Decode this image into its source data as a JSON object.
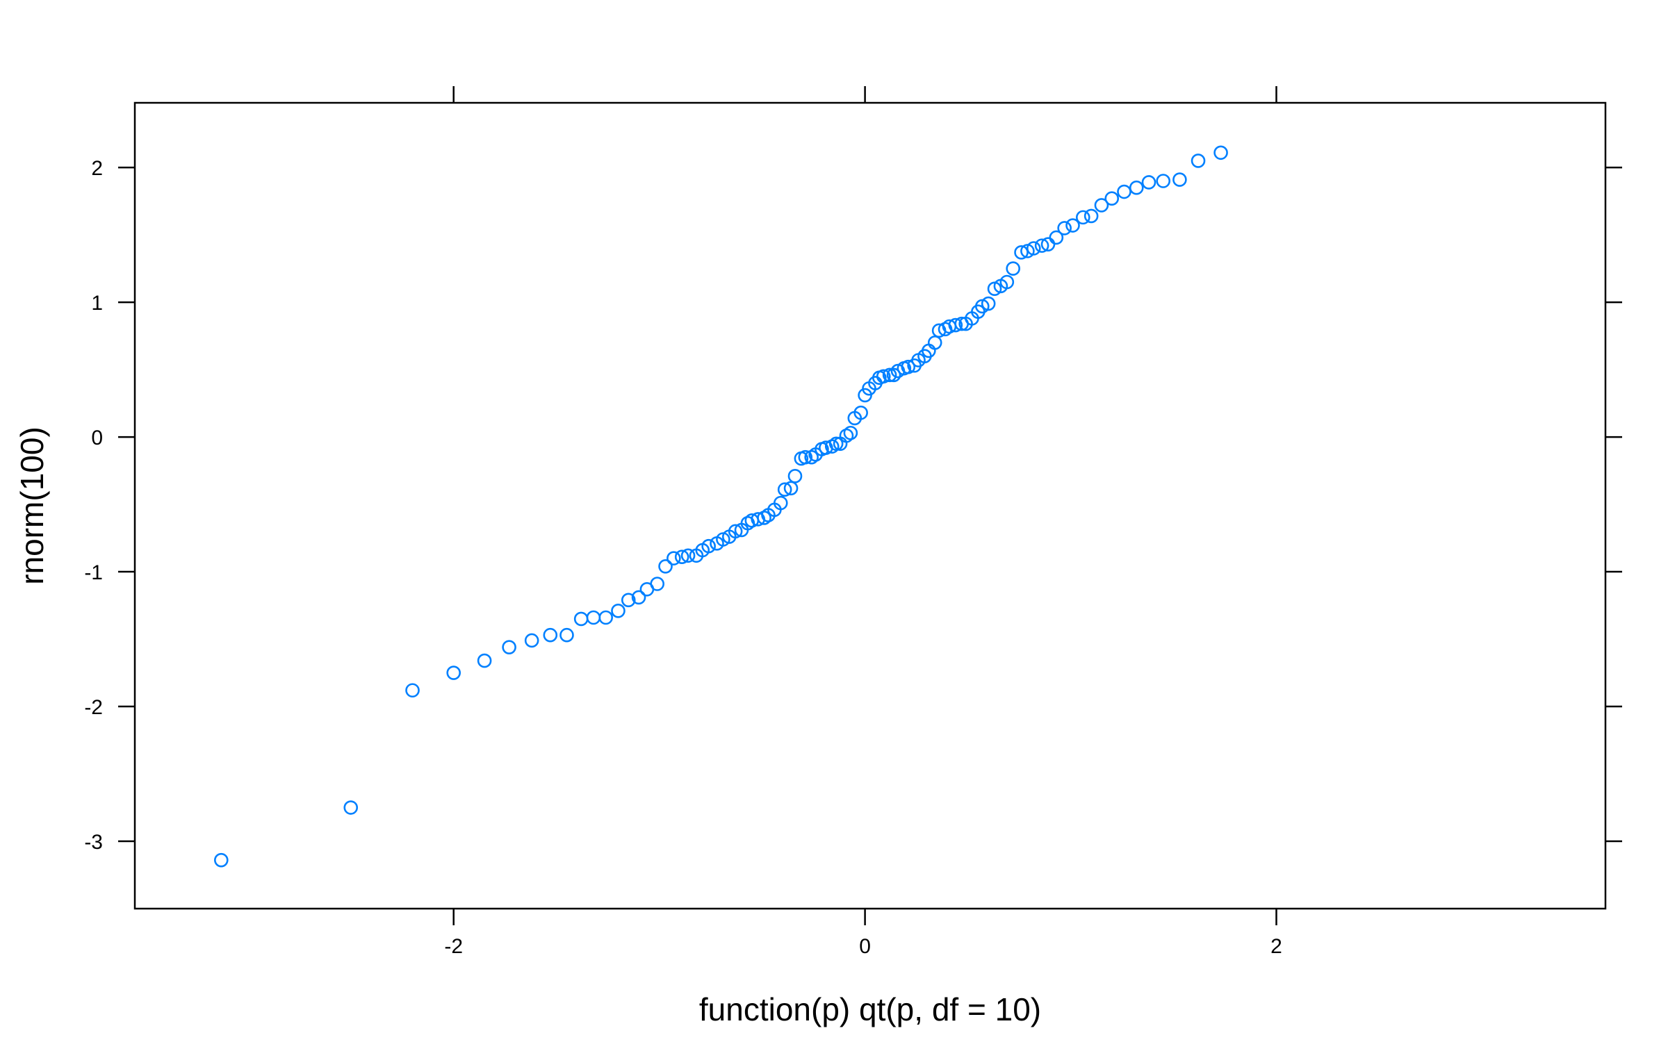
{
  "chart_data": {
    "type": "scatter",
    "title": "",
    "xlabel": "function(p) qt(p, df = 10)",
    "ylabel": "rnorm(100)",
    "xlim": [
      -3.55,
      3.6
    ],
    "ylim": [
      -3.5,
      2.48
    ],
    "xticks": [
      -2,
      0,
      2
    ],
    "xtick_labels": [
      "-2",
      "0",
      "2"
    ],
    "yticks": [
      -3,
      -2,
      -1,
      0,
      1,
      2
    ],
    "ytick_labels": [
      "-3",
      "-2",
      "-1",
      "0",
      "1",
      "2"
    ],
    "grid": false,
    "legend": "none",
    "marker": "open-circle",
    "series_color": "#0080ff",
    "axis_color": "#000000",
    "x": [
      -3.13,
      -2.5,
      -2.2,
      -2.0,
      -1.85,
      -1.73,
      -1.62,
      -1.53,
      -1.45,
      -1.38,
      -1.32,
      -1.26,
      -1.2,
      -1.15,
      -1.1,
      -1.06,
      -1.01,
      -0.97,
      -0.93,
      -0.89,
      -0.86,
      -0.82,
      -0.79,
      -0.76,
      -0.72,
      -0.69,
      -0.66,
      -0.63,
      -0.6,
      -0.57,
      -0.55,
      -0.52,
      -0.49,
      -0.47,
      -0.44,
      -0.41,
      -0.39,
      -0.36,
      -0.34,
      -0.31,
      -0.29,
      -0.26,
      -0.24,
      -0.21,
      -0.19,
      -0.16,
      -0.14,
      -0.12,
      -0.09,
      -0.07,
      -0.05,
      -0.02,
      0.0,
      0.02,
      0.05,
      0.07,
      0.09,
      0.12,
      0.14,
      0.16,
      0.19,
      0.21,
      0.24,
      0.26,
      0.29,
      0.31,
      0.34,
      0.36,
      0.39,
      0.41,
      0.44,
      0.47,
      0.49,
      0.52,
      0.55,
      0.57,
      0.6,
      0.63,
      0.66,
      0.69,
      0.72,
      0.76,
      0.79,
      0.82,
      0.86,
      0.89,
      0.93,
      0.97,
      1.01,
      1.06,
      1.1,
      1.15,
      1.2,
      1.26,
      1.32,
      1.38,
      1.45,
      1.53,
      1.62,
      1.73
    ],
    "y": [
      -3.14,
      -2.75,
      -1.88,
      -1.75,
      -1.66,
      -1.56,
      -1.51,
      -1.47,
      -1.47,
      -1.35,
      -1.34,
      -1.34,
      -1.29,
      -1.21,
      -1.19,
      -1.13,
      -1.09,
      -0.96,
      -0.9,
      -0.89,
      -0.88,
      -0.88,
      -0.84,
      -0.81,
      -0.79,
      -0.76,
      -0.74,
      -0.7,
      -0.69,
      -0.64,
      -0.62,
      -0.61,
      -0.6,
      -0.58,
      -0.54,
      -0.49,
      -0.39,
      -0.38,
      -0.29,
      -0.16,
      -0.15,
      -0.15,
      -0.13,
      -0.09,
      -0.08,
      -0.07,
      -0.05,
      -0.05,
      0.01,
      0.03,
      0.14,
      0.18,
      0.31,
      0.36,
      0.4,
      0.44,
      0.45,
      0.46,
      0.46,
      0.49,
      0.51,
      0.52,
      0.53,
      0.57,
      0.6,
      0.64,
      0.7,
      0.79,
      0.8,
      0.82,
      0.83,
      0.84,
      0.84,
      0.88,
      0.93,
      0.97,
      0.99,
      1.1,
      1.12,
      1.15,
      1.25,
      1.37,
      1.38,
      1.4,
      1.42,
      1.43,
      1.48,
      1.55,
      1.57,
      1.63,
      1.64,
      1.72,
      1.77,
      1.82,
      1.85,
      1.89,
      1.9,
      1.91,
      2.05,
      2.11
    ]
  }
}
